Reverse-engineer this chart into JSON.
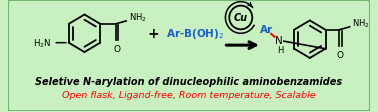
{
  "background_color": "#c8f0c0",
  "border_color": "#70b870",
  "title_text": "Seletive N-arylation of dinucleophilic aminobenzamides",
  "subtitle_text": "Open flask, Ligand-free, Room temperature, Scalable",
  "title_fontsize": 7.0,
  "subtitle_fontsize": 6.8,
  "title_color": "#000000",
  "subtitle_color": "#ff0000",
  "cu_label": "Cu",
  "reactant2_label": "Ar-B(OH)",
  "ar_label": "Ar",
  "ar_color": "#1a5fc8",
  "reactant2_color": "#1a5fc8"
}
